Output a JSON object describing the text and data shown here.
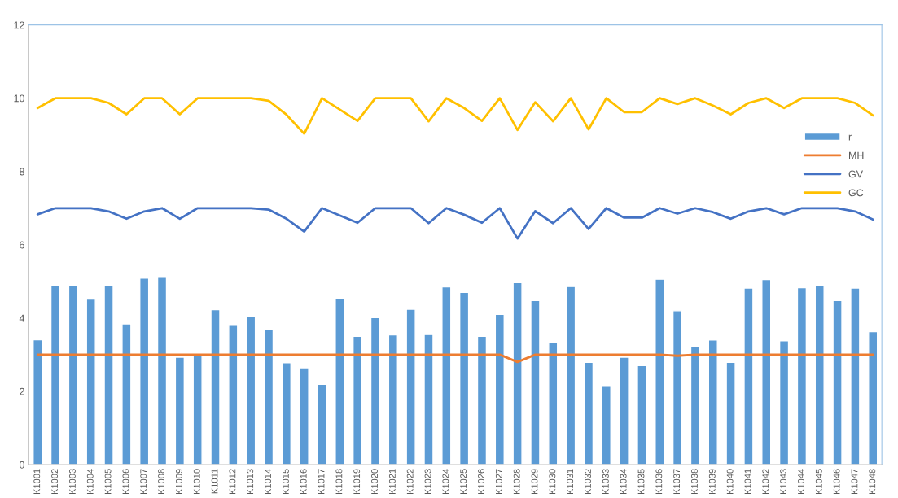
{
  "chart_data": {
    "type": "bar",
    "categories": [
      "K1001",
      "K1002",
      "K1003",
      "K1004",
      "K1005",
      "K1006",
      "K1007",
      "K1008",
      "K1009",
      "K1010",
      "K1011",
      "K1012",
      "K1013",
      "K1014",
      "K1015",
      "K1016",
      "K1017",
      "K1018",
      "K1019",
      "K1020",
      "K1021",
      "K1022",
      "K1023",
      "K1024",
      "K1025",
      "K1026",
      "K1027",
      "K1028",
      "K1029",
      "K1030",
      "K1031",
      "K1032",
      "K1033",
      "K1034",
      "K1035",
      "K1036",
      "K1037",
      "K1038",
      "K1039",
      "K1040",
      "K1041",
      "K1042",
      "K1043",
      "K1044",
      "K1045",
      "K1046",
      "K1047",
      "K1048"
    ],
    "series": [
      {
        "name": "r",
        "color": "#5b9bd5",
        "values": [
          3.41,
          4.88,
          4.88,
          4.52,
          4.88,
          3.84,
          5.09,
          5.11,
          2.93,
          3.01,
          4.23,
          3.8,
          4.04,
          3.7,
          2.78,
          2.64,
          2.19,
          4.54,
          3.5,
          4.01,
          3.54,
          4.24,
          3.55,
          4.85,
          4.7,
          3.5,
          4.1,
          4.97,
          4.48,
          3.33,
          4.86,
          2.79,
          2.16,
          2.93,
          2.7,
          5.06,
          4.2,
          3.23,
          3.4,
          2.79,
          4.82,
          5.05,
          3.38,
          4.83,
          4.88,
          4.48,
          4.82,
          3.63
        ]
      },
      {
        "name": "MH",
        "type": "line",
        "color": "#ed7d31",
        "values": [
          3,
          3,
          3,
          3,
          3,
          3,
          3,
          3,
          3,
          3,
          3,
          3,
          3,
          3,
          3,
          3,
          3,
          3,
          3,
          3,
          3,
          3,
          3,
          3,
          3,
          3,
          3,
          2.8,
          3,
          3,
          3,
          3,
          3,
          3,
          3,
          3,
          2.97,
          3,
          3,
          3,
          3,
          3,
          3,
          3,
          3,
          3,
          3,
          3
        ]
      },
      {
        "name": "GV",
        "type": "line",
        "color": "#4472c4",
        "values": [
          6.83,
          7,
          7,
          7,
          6.91,
          6.71,
          6.91,
          7,
          6.71,
          7,
          7,
          7,
          7,
          6.96,
          6.71,
          6.36,
          7,
          6.8,
          6.6,
          7,
          7,
          7,
          6.59,
          7,
          6.82,
          6.6,
          7,
          6.17,
          6.92,
          6.59,
          7,
          6.43,
          7,
          6.74,
          6.74,
          7,
          6.85,
          7,
          6.89,
          6.71,
          6.91,
          7,
          6.83,
          7,
          7,
          7,
          6.91,
          6.69
        ]
      },
      {
        "name": "GC",
        "type": "line",
        "color": "#ffc000",
        "values": [
          9.73,
          10,
          10,
          10,
          9.87,
          9.56,
          10,
          10,
          9.56,
          10,
          10,
          10,
          10,
          9.93,
          9.55,
          9.03,
          10,
          9.69,
          9.38,
          10,
          10,
          10,
          9.37,
          10,
          9.73,
          9.38,
          10,
          9.13,
          9.89,
          9.37,
          10,
          9.15,
          10,
          9.62,
          9.62,
          10,
          9.84,
          10,
          9.8,
          9.56,
          9.87,
          10,
          9.73,
          10,
          10,
          10,
          9.87,
          9.53
        ]
      }
    ],
    "ylim": [
      0,
      12
    ],
    "yticks": [
      0,
      2,
      4,
      6,
      8,
      10,
      12
    ],
    "grid": false,
    "legend": "right"
  }
}
